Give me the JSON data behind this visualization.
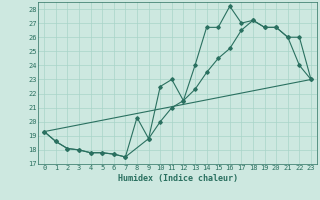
{
  "xlabel": "Humidex (Indice chaleur)",
  "bg_color": "#cde8e0",
  "grid_color": "#a8d4c8",
  "line_color": "#2a7060",
  "xlim": [
    -0.5,
    23.5
  ],
  "ylim": [
    17,
    28.5
  ],
  "yticks": [
    17,
    18,
    19,
    20,
    21,
    22,
    23,
    24,
    25,
    26,
    27,
    28
  ],
  "xticks": [
    0,
    1,
    2,
    3,
    4,
    5,
    6,
    7,
    8,
    9,
    10,
    11,
    12,
    13,
    14,
    15,
    16,
    17,
    18,
    19,
    20,
    21,
    22,
    23
  ],
  "line1_x": [
    0,
    1,
    2,
    3,
    4,
    5,
    6,
    7,
    8,
    9,
    10,
    11,
    12,
    13,
    14,
    15,
    16,
    17,
    18,
    19,
    20,
    21,
    22,
    23
  ],
  "line1_y": [
    19.3,
    18.6,
    18.1,
    18.0,
    17.8,
    17.8,
    17.7,
    17.5,
    20.3,
    18.8,
    22.5,
    23.0,
    21.5,
    24.0,
    26.7,
    26.7,
    28.2,
    27.0,
    27.2,
    26.7,
    26.7,
    26.0,
    24.0,
    23.0
  ],
  "line2_x": [
    0,
    1,
    2,
    3,
    4,
    5,
    6,
    7,
    9,
    10,
    11,
    12,
    13,
    14,
    15,
    16,
    17,
    18,
    19,
    20,
    21,
    22,
    23
  ],
  "line2_y": [
    19.3,
    18.6,
    18.1,
    18.0,
    17.8,
    17.8,
    17.7,
    17.5,
    18.8,
    20.0,
    21.0,
    21.5,
    22.3,
    23.5,
    24.5,
    25.2,
    26.5,
    27.2,
    26.7,
    26.7,
    26.0,
    26.0,
    23.0
  ],
  "line3_x": [
    0,
    23
  ],
  "line3_y": [
    19.3,
    23.0
  ]
}
